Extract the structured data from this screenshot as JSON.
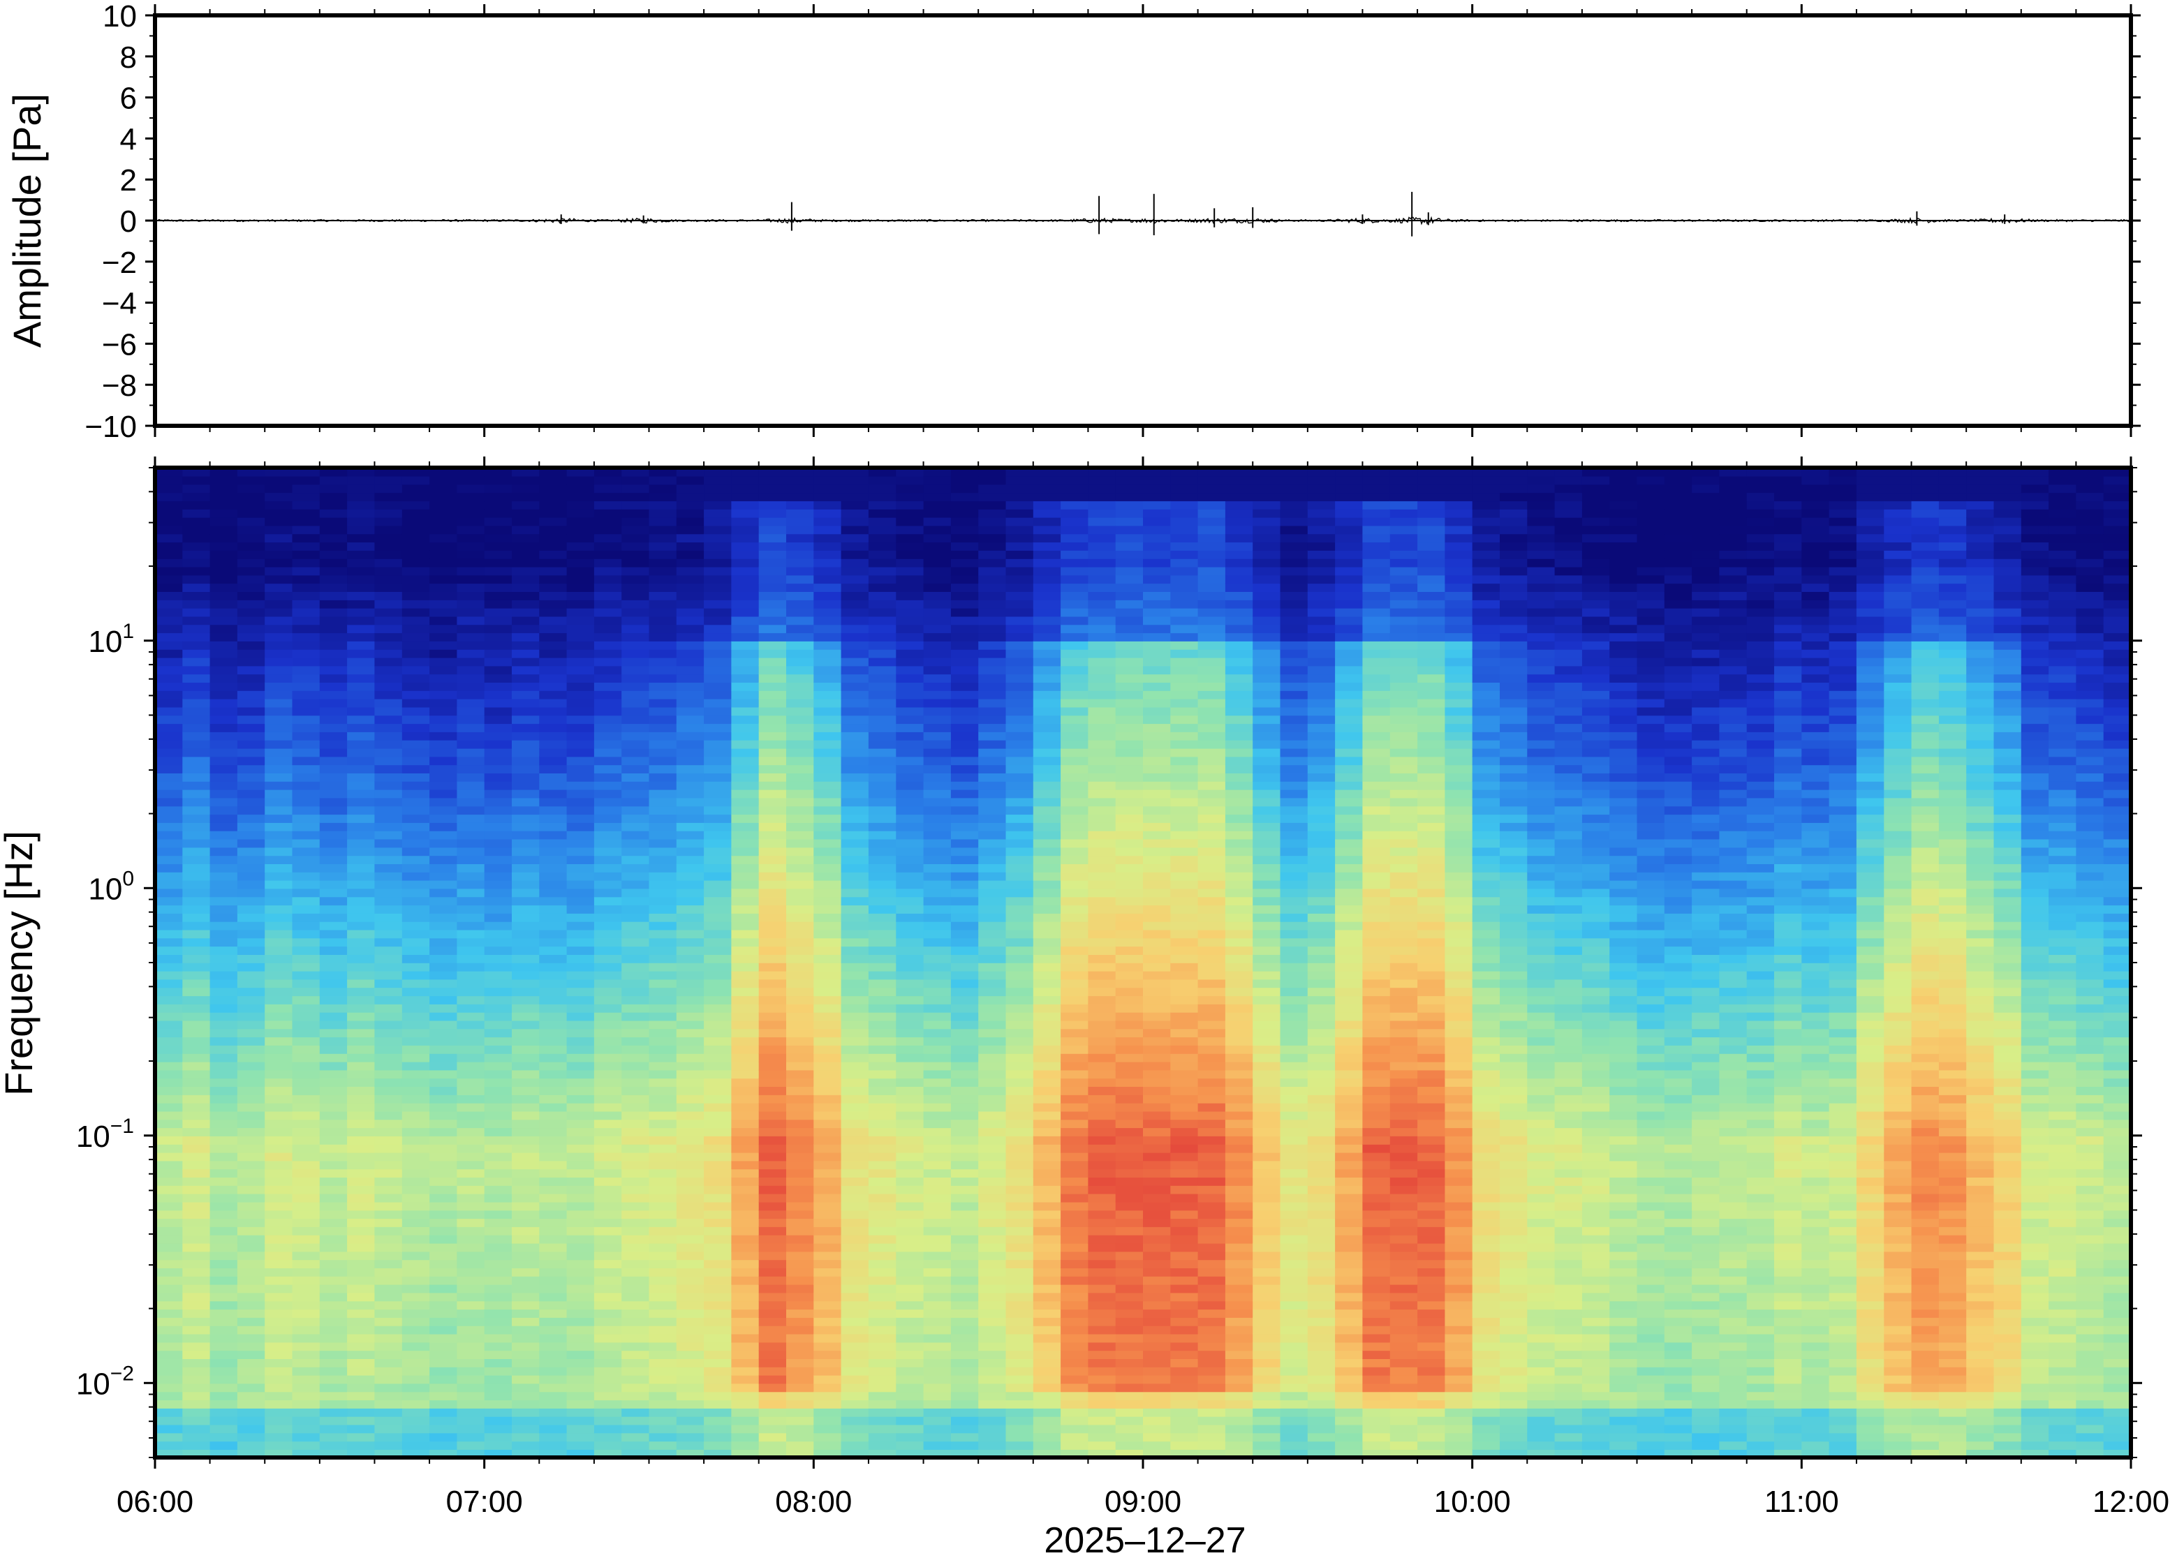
{
  "chart_data": [
    {
      "type": "line",
      "panel": "waveform",
      "ylabel": "Amplitude [Pa]",
      "ylim": [
        -10,
        10
      ],
      "yticks": [
        10,
        8,
        6,
        4,
        2,
        0,
        -2,
        -4,
        -6,
        -8,
        -10
      ],
      "ytick_labels": [
        "10",
        "8",
        "6",
        "4",
        "2",
        "0",
        "−2",
        "−4",
        "−6",
        "−8",
        "−10"
      ],
      "xlim": [
        "06:00",
        "12:00"
      ],
      "baseline": 0,
      "events": [
        {
          "t": "07:14",
          "amp": 0.3
        },
        {
          "t": "07:29",
          "amp": 0.25
        },
        {
          "t": "07:56",
          "amp": 0.9
        },
        {
          "t": "08:52",
          "amp": 1.2
        },
        {
          "t": "09:02",
          "amp": 1.3
        },
        {
          "t": "09:13",
          "amp": 0.6
        },
        {
          "t": "09:20",
          "amp": 0.65
        },
        {
          "t": "09:40",
          "amp": 0.3
        },
        {
          "t": "09:49",
          "amp": 1.4
        },
        {
          "t": "09:52",
          "amp": 0.4
        },
        {
          "t": "11:21",
          "amp": 0.45
        },
        {
          "t": "11:37",
          "amp": 0.3
        }
      ]
    },
    {
      "type": "heatmap",
      "panel": "spectrogram",
      "ylabel": "Frequency [Hz]",
      "xlabel": "2025–12–27",
      "yscale": "log",
      "ylim": [
        0.005,
        50
      ],
      "yticks": [
        {
          "base": "10",
          "exp": "1"
        },
        {
          "base": "10",
          "exp": "0"
        },
        {
          "base": "10",
          "exp": "−1"
        },
        {
          "base": "10",
          "exp": "−2"
        }
      ],
      "ytick_values": [
        10,
        1,
        0.1,
        0.01
      ],
      "xticks": [
        "06:00",
        "07:00",
        "08:00",
        "09:00",
        "10:00",
        "11:00",
        "12:00"
      ],
      "colormap": [
        "#0a0a78",
        "#1a33cc",
        "#2a7fe8",
        "#3fc6ee",
        "#8fe3b0",
        "#d8ee88",
        "#f7d070",
        "#f6924e",
        "#e4453a"
      ],
      "energy_bursts": [
        {
          "t": "07:55",
          "level": 0.78
        },
        {
          "t": "08:55",
          "level": 0.95
        },
        {
          "t": "09:10",
          "level": 0.9
        },
        {
          "t": "09:48",
          "level": 1.0
        },
        {
          "t": "11:25",
          "level": 0.72
        }
      ]
    }
  ]
}
